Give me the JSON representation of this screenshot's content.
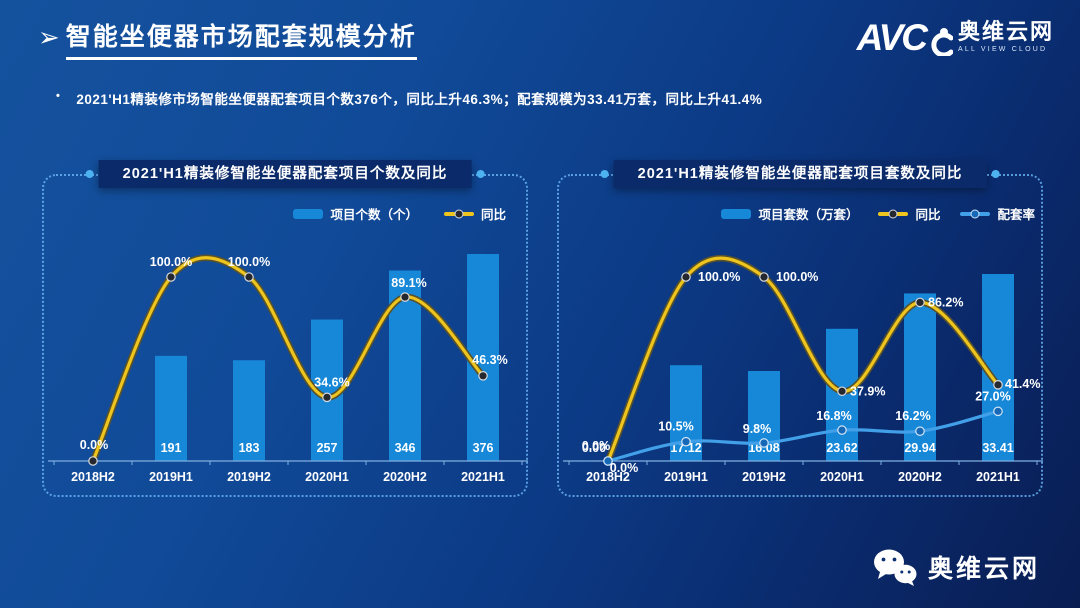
{
  "slide": {
    "title": "智能坐便器市场配套规模分析",
    "title_arrow": "➢",
    "bullet_marker": "•",
    "bullet": "2021'H1精装修市场智能坐便器配套项目个数376个，同比上升46.3%；配套规模为33.41万套，同比上升41.4%",
    "logo": {
      "avc": "AVC",
      "name": "奥维云网",
      "sub": "ALL VIEW CLOUD"
    },
    "footer": {
      "wechat_name": "奥维云网"
    }
  },
  "colors": {
    "background_top": "#15529e",
    "background_bottom": "#091d52",
    "panel_header_bg": "#0a2a6a",
    "panel_border": "#68b1f0",
    "bar_blue": "#1787d8",
    "yoy_yellow": "#eec41e",
    "rate_blue": "#41a0e8",
    "axis": "#7fb0e0"
  },
  "chart_data": [
    {
      "id": "count-chart",
      "type": "bar+line",
      "title": "2021'H1精装修智能坐便器配套项目个数及同比",
      "categories": [
        "2018H2",
        "2019H1",
        "2019H2",
        "2020H1",
        "2020H2",
        "2021H1"
      ],
      "legend_position": "top",
      "grid": false,
      "y_right_pct_range": [
        0,
        100
      ],
      "series": [
        {
          "name": "项目个数（个）",
          "type": "bar",
          "values": [
            0,
            191,
            183,
            257,
            346,
            376
          ],
          "labels": [
            "",
            "191",
            "183",
            "257",
            "346",
            "376"
          ],
          "color": "#1787d8"
        },
        {
          "name": "同比",
          "type": "line",
          "values": [
            0.0,
            100.0,
            100.0,
            34.6,
            89.1,
            46.3
          ],
          "labels": [
            "0.0%",
            "100.0%",
            "100.0%",
            "34.6%",
            "89.1%",
            "46.3%"
          ],
          "color": "#eec41e",
          "halo": "#59522b",
          "marker_fill": "#26282f",
          "marker_stroke": "#d6d9dd"
        }
      ]
    },
    {
      "id": "volume-chart",
      "type": "bar+line",
      "title": "2021'H1精装修智能坐便器配套项目套数及同比",
      "categories": [
        "2018H2",
        "2019H1",
        "2019H2",
        "2020H1",
        "2020H2",
        "2021H1"
      ],
      "legend_position": "top",
      "grid": false,
      "y_right_pct_range": [
        0,
        100
      ],
      "series": [
        {
          "name": "项目套数（万套）",
          "type": "bar",
          "values": [
            0.0,
            17.12,
            16.08,
            23.62,
            29.94,
            33.41
          ],
          "labels": [
            "0.00",
            "17.12",
            "16.08",
            "23.62",
            "29.94",
            "33.41"
          ],
          "color": "#1787d8"
        },
        {
          "name": "同比",
          "type": "line",
          "values": [
            0.0,
            100.0,
            100.0,
            37.9,
            86.2,
            41.4
          ],
          "labels": [
            "0.0%",
            "100.0%",
            "100.0%",
            "37.9%",
            "86.2%",
            "41.4%"
          ],
          "color": "#eec41e",
          "halo": "#59522b",
          "marker_fill": "#26282f",
          "marker_stroke": "#d6d9dd"
        },
        {
          "name": "配套率",
          "type": "line",
          "values": [
            0.0,
            10.5,
            9.8,
            16.8,
            16.2,
            27.0
          ],
          "labels": [
            "0.0%",
            "10.5%",
            "9.8%",
            "16.8%",
            "16.2%",
            "27.0%"
          ],
          "color": "#41a0e8",
          "halo": null,
          "marker_fill": "#1769b8",
          "marker_stroke": "#cfe4f6"
        }
      ]
    }
  ]
}
